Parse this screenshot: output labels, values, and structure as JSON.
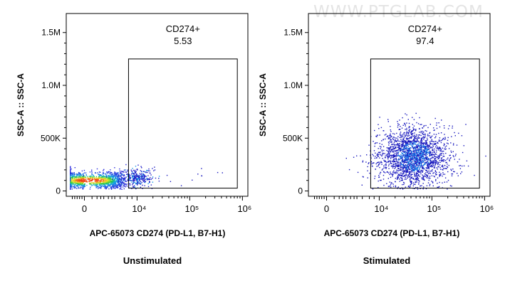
{
  "watermark": "WWW.PTGLAB.COM",
  "chart_data": [
    {
      "type": "scatter",
      "panel_caption": "Unstimulated",
      "xlabel": "APC-65073 CD274 (PD-L1, B7-H1)",
      "ylabel": "SSC-A :: SSC-A",
      "x_scale": "biexponential",
      "x_ticks": [
        {
          "value": 0,
          "label": "0"
        },
        {
          "value": 10000,
          "label": "10⁴"
        },
        {
          "value": 100000,
          "label": "10⁵"
        },
        {
          "value": 1000000,
          "label": "10⁶"
        }
      ],
      "y_ticks": [
        {
          "value": 0,
          "label": "0"
        },
        {
          "value": 500000,
          "label": "500K"
        },
        {
          "value": 1000000,
          "label": "1.0M"
        },
        {
          "value": 1500000,
          "label": "1.5M"
        }
      ],
      "ylim": [
        -50000,
        1680000
      ],
      "gate": {
        "name": "CD274+",
        "percent": "5.53",
        "x_range": [
          5500,
          800000
        ],
        "y_range": [
          0,
          1250000
        ]
      },
      "populations": [
        {
          "center_x": 0,
          "spread_x": 1.0,
          "center_y": 105000,
          "spread_y": 40000,
          "count": 1600,
          "density": "high"
        },
        {
          "center_x": 5000,
          "spread_x": 1.2,
          "center_y": 130000,
          "spread_y": 45000,
          "count": 300,
          "density": "low"
        },
        {
          "center_x": 70000,
          "spread_x": 0.5,
          "center_y": 150000,
          "spread_y": 50000,
          "count": 15,
          "density": "sparse"
        }
      ]
    },
    {
      "type": "scatter",
      "panel_caption": "Stimulated",
      "xlabel": "APC-65073 CD274 (PD-L1, B7-H1)",
      "ylabel": "SSC-A :: SSC-A",
      "x_scale": "biexponential",
      "x_ticks": [
        {
          "value": 0,
          "label": "0"
        },
        {
          "value": 10000,
          "label": "10⁴"
        },
        {
          "value": 100000,
          "label": "10⁵"
        },
        {
          "value": 1000000,
          "label": "10⁶"
        }
      ],
      "y_ticks": [
        {
          "value": 0,
          "label": "0"
        },
        {
          "value": 500000,
          "label": "500K"
        },
        {
          "value": 1000000,
          "label": "1.0M"
        },
        {
          "value": 1500000,
          "label": "1.5M"
        }
      ],
      "ylim": [
        -50000,
        1680000
      ],
      "gate": {
        "name": "CD274+",
        "percent": "97.4",
        "x_range": [
          5500,
          800000
        ],
        "y_range": [
          0,
          1250000
        ]
      },
      "populations": [
        {
          "center_x": 45000,
          "spread_x": 0.32,
          "center_y": 330000,
          "spread_y": 140000,
          "count": 2200,
          "density": "medium"
        },
        {
          "center_x": 8000,
          "spread_x": 0.5,
          "center_y": 240000,
          "spread_y": 80000,
          "count": 60,
          "density": "sparse"
        }
      ]
    }
  ]
}
